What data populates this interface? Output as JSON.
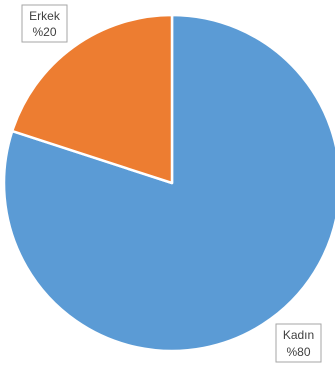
{
  "chart_data": {
    "type": "pie",
    "categories": [
      "Kadın",
      "Erkek"
    ],
    "values": [
      80,
      20
    ],
    "data_labels": [
      {
        "category": "Kadın",
        "value": "%80"
      },
      {
        "category": "Erkek",
        "value": "%20"
      }
    ],
    "colors": {
      "Kadın": "#5B9BD5",
      "Erkek": "#ED7D31"
    },
    "title": "",
    "legend": "none"
  }
}
